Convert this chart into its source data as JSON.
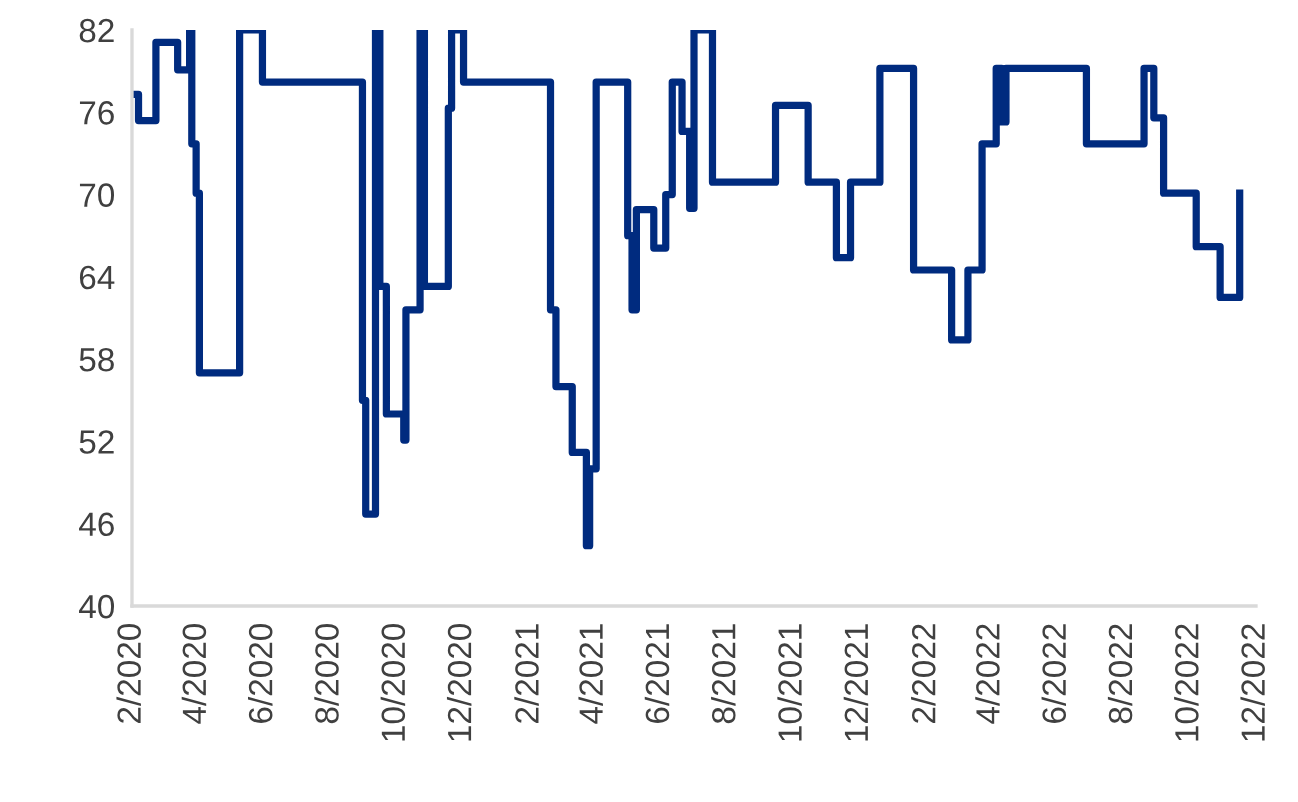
{
  "chart_data": {
    "type": "step",
    "line_style": "solid",
    "marker": "none",
    "grid": false,
    "legend": false,
    "xlim": [
      "2020-02",
      "2022-12"
    ],
    "ylim": [
      40,
      82
    ],
    "yticks": [
      40,
      46,
      52,
      58,
      64,
      70,
      76,
      82
    ],
    "xticks": [
      {
        "value": "2020-02",
        "label": "2/2020"
      },
      {
        "value": "2020-04",
        "label": "4/2020"
      },
      {
        "value": "2020-06",
        "label": "6/2020"
      },
      {
        "value": "2020-08",
        "label": "8/2020"
      },
      {
        "value": "2020-10",
        "label": "10/2020"
      },
      {
        "value": "2020-12",
        "label": "12/2020"
      },
      {
        "value": "2021-02",
        "label": "2/2021"
      },
      {
        "value": "2021-04",
        "label": "4/2021"
      },
      {
        "value": "2021-06",
        "label": "6/2021"
      },
      {
        "value": "2021-08",
        "label": "8/2021"
      },
      {
        "value": "2021-10",
        "label": "10/2021"
      },
      {
        "value": "2021-12",
        "label": "12/2021"
      },
      {
        "value": "2022-02",
        "label": "2/2022"
      },
      {
        "value": "2022-04",
        "label": "4/2022"
      },
      {
        "value": "2022-06",
        "label": "6/2022"
      },
      {
        "value": "2022-08",
        "label": "8/2022"
      },
      {
        "value": "2022-10",
        "label": "10/2022"
      },
      {
        "value": "2022-12",
        "label": "12/2022"
      }
    ],
    "x": [
      "2020-02-01",
      "2020-02-07",
      "2020-02-23",
      "2020-03-14",
      "2020-03-25",
      "2020-03-27",
      "2020-03-31",
      "2020-04-03",
      "2020-05-10",
      "2020-05-31",
      "2020-08-31",
      "2020-09-03",
      "2020-09-12",
      "2020-09-16",
      "2020-09-22",
      "2020-10-08",
      "2020-10-10",
      "2020-10-23",
      "2020-10-27",
      "2020-11-18",
      "2020-11-21",
      "2020-12-02",
      "2021-02-20",
      "2021-02-25",
      "2021-03-12",
      "2021-03-25",
      "2021-03-28",
      "2021-04-03",
      "2021-05-02",
      "2021-05-06",
      "2021-05-10",
      "2021-05-26",
      "2021-06-06",
      "2021-06-12",
      "2021-06-21",
      "2021-06-28",
      "2021-07-02",
      "2021-07-19",
      "2021-09-15",
      "2021-10-15",
      "2021-11-10",
      "2021-11-23",
      "2021-12-20",
      "2022-01-20",
      "2022-02-24",
      "2022-03-11",
      "2022-03-24",
      "2022-04-06",
      "2022-04-11",
      "2022-04-15",
      "2022-06-28",
      "2022-08-20",
      "2022-08-29",
      "2022-09-07",
      "2022-10-07",
      "2022-10-29",
      "2022-11-16"
    ],
    "series": [
      {
        "color": "#002b7f",
        "values": [
          77.3,
          75.4,
          81.1,
          79.1,
          82,
          73.7,
          70.1,
          57,
          82,
          78.2,
          55,
          46.7,
          82,
          63.3,
          54,
          52.1,
          61.6,
          82,
          63.3,
          76.3,
          82,
          78.2,
          61.6,
          56,
          51.2,
          44.4,
          50,
          78.2,
          67,
          61.6,
          68.9,
          66.1,
          70,
          78.2,
          74.6,
          69,
          82,
          70.9,
          76.5,
          70.9,
          65.4,
          70.9,
          79.2,
          64.5,
          59.4,
          64.5,
          73.7,
          79.2,
          75.3,
          79.2,
          73.7,
          79.2,
          75.6,
          70.1,
          66.2,
          62.5,
          70.1
        ]
      }
    ]
  }
}
